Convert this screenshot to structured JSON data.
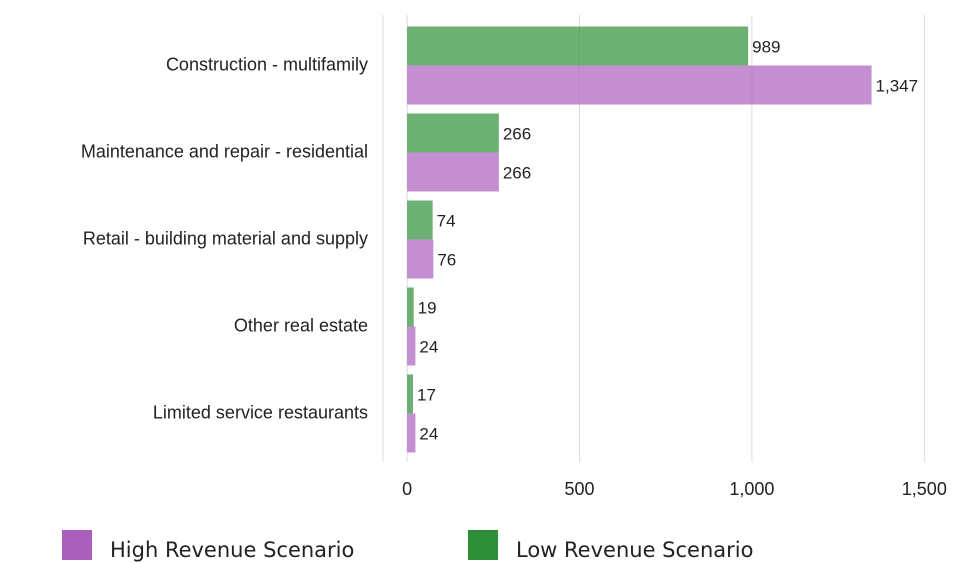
{
  "chart_data": {
    "type": "bar",
    "orientation": "horizontal",
    "categories": [
      "Construction - multifamily",
      "Maintenance and repair - residential",
      "Retail - building material and supply",
      "Other real estate",
      "Limited service restaurants"
    ],
    "series": [
      {
        "name": "High Revenue Scenario",
        "color": "#ab5fbc",
        "values": [
          1347,
          266,
          76,
          24,
          24
        ],
        "value_labels": [
          "1,347",
          "266",
          "76",
          "24",
          "24"
        ]
      },
      {
        "name": "Low Revenue Scenario",
        "color": "#2e8e37",
        "values": [
          989,
          266,
          74,
          19,
          17
        ],
        "value_labels": [
          "989",
          "266",
          "74",
          "19",
          "17"
        ]
      }
    ],
    "xlim": [
      -70,
      1560
    ],
    "xticks": [
      0,
      500,
      {
        "value": 1000,
        "label": "1,000"
      },
      {
        "value": 1500,
        "label": "1,500"
      }
    ],
    "grid": true,
    "legend": "bottom"
  }
}
